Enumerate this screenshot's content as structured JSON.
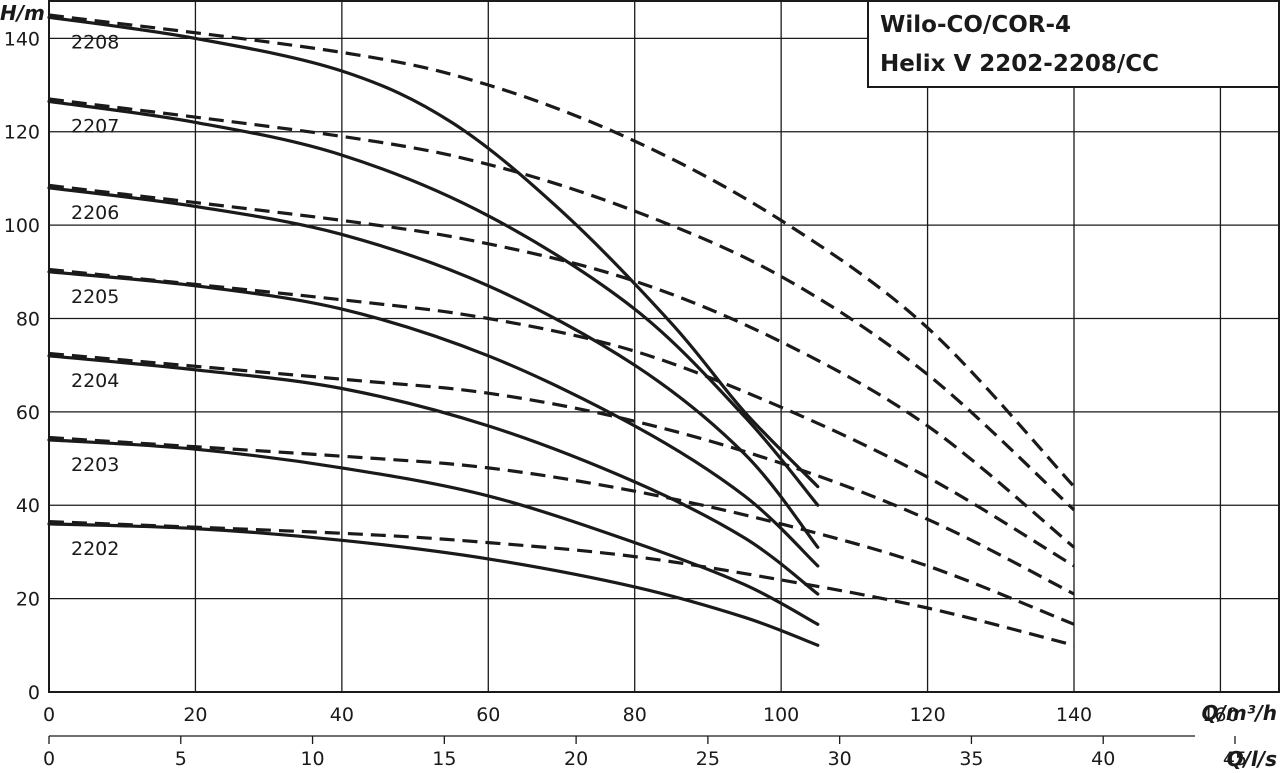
{
  "chart_data": {
    "type": "line",
    "title_lines": [
      "Wilo-CO/COR-4",
      "Helix V 2202-2208/CC"
    ],
    "ylabel": "H/m",
    "xlabel": "Q/m³/h",
    "x2label": "Q/l/s",
    "xlim": [
      0,
      168
    ],
    "ylim": [
      0,
      148
    ],
    "x2lim": [
      0,
      46.67
    ],
    "x_ticks": [
      0,
      20,
      40,
      60,
      80,
      100,
      120,
      140,
      160
    ],
    "x2_ticks": [
      0,
      5,
      10,
      15,
      20,
      25,
      30,
      35,
      40,
      45
    ],
    "y_ticks": [
      0,
      20,
      40,
      60,
      80,
      100,
      120,
      140
    ],
    "grid": true,
    "series": [
      {
        "name": "2208",
        "solid": [
          [
            0,
            144.5
          ],
          [
            20,
            140
          ],
          [
            40,
            133
          ],
          [
            55,
            122
          ],
          [
            70,
            103
          ],
          [
            85,
            79
          ],
          [
            95,
            60
          ],
          [
            105,
            44
          ]
        ],
        "dashed": [
          [
            0,
            145
          ],
          [
            40,
            137
          ],
          [
            60,
            130
          ],
          [
            80,
            118
          ],
          [
            100,
            101
          ],
          [
            120,
            78
          ],
          [
            140,
            44
          ]
        ]
      },
      {
        "name": "2207",
        "solid": [
          [
            0,
            126.5
          ],
          [
            20,
            122
          ],
          [
            40,
            115
          ],
          [
            60,
            102
          ],
          [
            80,
            82
          ],
          [
            95,
            59
          ],
          [
            105,
            40
          ]
        ],
        "dashed": [
          [
            0,
            127
          ],
          [
            40,
            119
          ],
          [
            60,
            113
          ],
          [
            80,
            103
          ],
          [
            100,
            89
          ],
          [
            120,
            68
          ],
          [
            140,
            39
          ]
        ]
      },
      {
        "name": "2206",
        "solid": [
          [
            0,
            108
          ],
          [
            20,
            104
          ],
          [
            40,
            98
          ],
          [
            60,
            87
          ],
          [
            80,
            70
          ],
          [
            95,
            51
          ],
          [
            105,
            31
          ]
        ],
        "dashed": [
          [
            0,
            108.5
          ],
          [
            40,
            101
          ],
          [
            60,
            96
          ],
          [
            80,
            88
          ],
          [
            100,
            75
          ],
          [
            120,
            57
          ],
          [
            140,
            31
          ]
        ]
      },
      {
        "name": "2205",
        "solid": [
          [
            0,
            90
          ],
          [
            20,
            87
          ],
          [
            40,
            82
          ],
          [
            60,
            72
          ],
          [
            80,
            57
          ],
          [
            95,
            42
          ],
          [
            105,
            27
          ]
        ],
        "dashed": [
          [
            0,
            90.5
          ],
          [
            40,
            84
          ],
          [
            60,
            80
          ],
          [
            80,
            73
          ],
          [
            100,
            61
          ],
          [
            120,
            46
          ],
          [
            140,
            27
          ]
        ]
      },
      {
        "name": "2204",
        "solid": [
          [
            0,
            72
          ],
          [
            20,
            69
          ],
          [
            40,
            65
          ],
          [
            60,
            57
          ],
          [
            80,
            45
          ],
          [
            95,
            33
          ],
          [
            105,
            21
          ]
        ],
        "dashed": [
          [
            0,
            72.5
          ],
          [
            40,
            67
          ],
          [
            60,
            64
          ],
          [
            80,
            58
          ],
          [
            100,
            49
          ],
          [
            120,
            37
          ],
          [
            140,
            21
          ]
        ]
      },
      {
        "name": "2203",
        "solid": [
          [
            0,
            54
          ],
          [
            20,
            52
          ],
          [
            40,
            48
          ],
          [
            60,
            42
          ],
          [
            80,
            32
          ],
          [
            95,
            23
          ],
          [
            105,
            14.5
          ]
        ],
        "dashed": [
          [
            0,
            54.5
          ],
          [
            40,
            50.5
          ],
          [
            60,
            48
          ],
          [
            80,
            43
          ],
          [
            100,
            36
          ],
          [
            120,
            27
          ],
          [
            140,
            14.5
          ]
        ]
      },
      {
        "name": "2202",
        "solid": [
          [
            0,
            36
          ],
          [
            20,
            35
          ],
          [
            40,
            32.5
          ],
          [
            60,
            28.5
          ],
          [
            80,
            22.5
          ],
          [
            95,
            16
          ],
          [
            105,
            10
          ]
        ],
        "dashed": [
          [
            0,
            36.5
          ],
          [
            40,
            34
          ],
          [
            60,
            32
          ],
          [
            80,
            29
          ],
          [
            100,
            24
          ],
          [
            120,
            18
          ],
          [
            140,
            10
          ]
        ]
      }
    ]
  }
}
